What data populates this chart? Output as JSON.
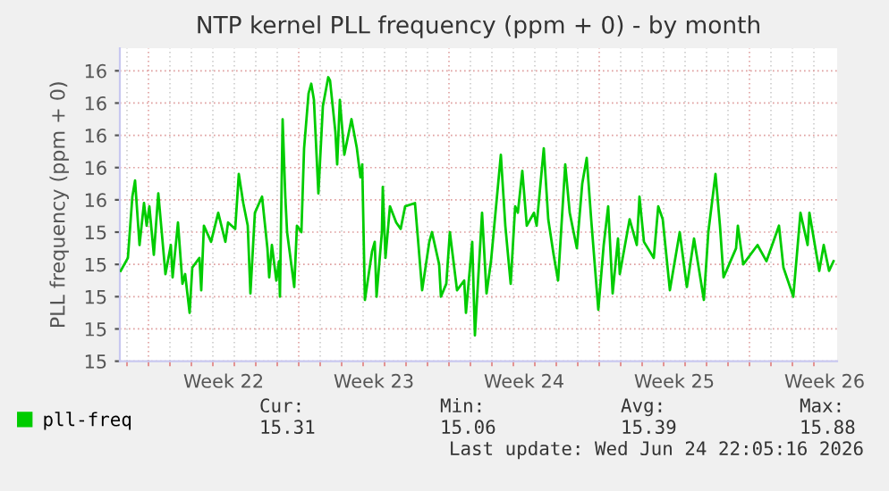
{
  "chart_data": {
    "type": "line",
    "title": "NTP kernel PLL frequency (ppm + 0) - by month",
    "ylabel": "PLL frequency (ppm + 0)",
    "x": [
      "2026-05-23T17:00",
      "2026-05-24T01:00",
      "2026-05-24T06:00",
      "2026-05-24T09:00",
      "2026-05-24T14:00",
      "2026-05-24T19:00",
      "2026-05-24T22:00",
      "2026-05-25T01:00",
      "2026-05-25T06:00",
      "2026-05-25T11:00",
      "2026-05-25T19:00",
      "2026-05-26T01:00",
      "2026-05-26T03:00",
      "2026-05-26T09:00",
      "2026-05-26T14:00",
      "2026-05-26T17:00",
      "2026-05-26T22:00",
      "2026-05-27T01:00",
      "2026-05-27T09:00",
      "2026-05-27T11:00",
      "2026-05-27T14:00",
      "2026-05-27T22:00",
      "2026-05-28T06:00",
      "2026-05-28T14:00",
      "2026-05-28T17:00",
      "2026-05-29T01:00",
      "2026-05-29T05:00",
      "2026-05-29T10:00",
      "2026-05-29T15:00",
      "2026-05-29T18:00",
      "2026-05-29T23:00",
      "2026-05-30T07:00",
      "2026-05-30T13:00",
      "2026-05-30T15:00",
      "2026-05-30T18:00",
      "2026-05-30T23:00",
      "2026-05-31T02:00",
      "2026-05-31T03:00",
      "2026-05-31T06:00",
      "2026-05-31T09:00",
      "2026-05-31T11:00",
      "2026-05-31T19:00",
      "2026-05-31T22:00",
      "2026-06-01T03:00",
      "2026-06-01T06:00",
      "2026-06-01T11:00",
      "2026-06-01T14:00",
      "2026-06-01T17:00",
      "2026-06-01T22:00",
      "2026-06-02T03:00",
      "2026-06-02T09:00",
      "2026-06-02T11:00",
      "2026-06-02T17:00",
      "2026-06-02T19:00",
      "2026-06-02T22:00",
      "2026-06-03T03:00",
      "2026-06-03T11:00",
      "2026-06-03T17:00",
      "2026-06-03T21:00",
      "2026-06-03T23:00",
      "2026-06-04T02:00",
      "2026-06-04T10:00",
      "2026-06-04T13:00",
      "2026-06-04T15:00",
      "2026-06-04T21:00",
      "2026-06-04T22:00",
      "2026-06-05T01:00",
      "2026-06-05T06:00",
      "2026-06-05T13:00",
      "2026-06-05T18:00",
      "2026-06-05T23:00",
      "2026-06-06T10:00",
      "2026-06-06T13:00",
      "2026-06-06T18:00",
      "2026-06-07T02:00",
      "2026-06-07T05:00",
      "2026-06-07T13:00",
      "2026-06-07T15:00",
      "2026-06-07T21:00",
      "2026-06-08T01:00",
      "2026-06-08T09:00",
      "2026-06-08T17:00",
      "2026-06-08T19:00",
      "2026-06-09T02:00",
      "2026-06-09T05:00",
      "2026-06-09T13:00",
      "2026-06-09T18:00",
      "2026-06-09T23:00",
      "2026-06-10T10:00",
      "2026-06-10T15:00",
      "2026-06-10T21:00",
      "2026-06-11T02:00",
      "2026-06-11T05:00",
      "2026-06-11T10:00",
      "2026-06-11T15:00",
      "2026-06-11T23:00",
      "2026-06-12T02:00",
      "2026-06-12T10:00",
      "2026-06-12T15:00",
      "2026-06-12T21:00",
      "2026-06-13T02:00",
      "2026-06-13T10:00",
      "2026-06-13T15:00",
      "2026-06-13T23:00",
      "2026-06-14T05:00",
      "2026-06-14T10:00",
      "2026-06-14T15:00",
      "2026-06-14T23:00",
      "2026-06-15T05:00",
      "2026-06-15T10:00",
      "2026-06-15T15:00",
      "2026-06-15T21:00",
      "2026-06-15T23:00",
      "2026-06-16T10:00",
      "2026-06-16T18:00",
      "2026-06-16T21:00",
      "2026-06-17T02:00",
      "2026-06-17T13:00",
      "2026-06-17T18:00",
      "2026-06-17T23:00",
      "2026-06-18T07:00",
      "2026-06-18T18:00",
      "2026-06-19T02:00",
      "2026-06-19T10:00",
      "2026-06-19T21:00",
      "2026-06-20T02:00",
      "2026-06-20T10:00",
      "2026-06-20T15:00",
      "2026-06-20T19:00",
      "2026-06-21T09:00",
      "2026-06-21T11:00",
      "2026-06-21T17:00",
      "2026-06-22T09:00",
      "2026-06-22T19:00",
      "2026-06-23T09:00",
      "2026-06-23T14:00",
      "2026-06-24T01:00",
      "2026-06-24T09:00",
      "2026-06-24T17:00",
      "2026-06-24T19:00",
      "2026-06-25T06:00",
      "2026-06-25T11:00",
      "2026-06-25T17:00",
      "2026-06-25T22:00"
    ],
    "series": [
      {
        "name": "pll-freq",
        "color": "#00cc00",
        "values": [
          15.28,
          15.32,
          15.51,
          15.56,
          15.36,
          15.49,
          15.42,
          15.48,
          15.33,
          15.52,
          15.27,
          15.36,
          15.26,
          15.43,
          15.24,
          15.27,
          15.15,
          15.29,
          15.32,
          15.22,
          15.42,
          15.37,
          15.46,
          15.37,
          15.43,
          15.41,
          15.58,
          15.49,
          15.42,
          15.21,
          15.46,
          15.51,
          15.35,
          15.26,
          15.36,
          15.25,
          15.31,
          15.2,
          15.75,
          15.51,
          15.4,
          15.23,
          15.42,
          15.4,
          15.66,
          15.83,
          15.86,
          15.81,
          15.52,
          15.79,
          15.88,
          15.87,
          15.71,
          15.61,
          15.81,
          15.64,
          15.75,
          15.66,
          15.57,
          15.61,
          15.19,
          15.34,
          15.37,
          15.2,
          15.4,
          15.54,
          15.32,
          15.48,
          15.43,
          15.41,
          15.48,
          15.49,
          15.39,
          15.22,
          15.37,
          15.4,
          15.3,
          15.2,
          15.24,
          15.4,
          15.22,
          15.25,
          15.15,
          15.37,
          15.08,
          15.46,
          15.21,
          15.31,
          15.64,
          15.42,
          15.24,
          15.48,
          15.46,
          15.59,
          15.42,
          15.46,
          15.42,
          15.66,
          15.44,
          15.33,
          15.25,
          15.61,
          15.46,
          15.35,
          15.55,
          15.63,
          15.44,
          15.16,
          15.36,
          15.48,
          15.21,
          15.38,
          15.27,
          15.44,
          15.36,
          15.51,
          15.37,
          15.32,
          15.48,
          15.44,
          15.22,
          15.4,
          15.23,
          15.38,
          15.19,
          15.4,
          15.58,
          15.42,
          15.26,
          15.35,
          15.42,
          15.3,
          15.36,
          15.31,
          15.42,
          15.29,
          15.2,
          15.46,
          15.36,
          15.46,
          15.28,
          15.36,
          15.28,
          15.31
        ]
      }
    ],
    "xlim": [
      "2026-05-23T16:00",
      "2026-06-26T02:00"
    ],
    "xticks": [
      {
        "value": "2026-05-28T12:00",
        "label": "Week 22"
      },
      {
        "value": "2026-06-04T12:00",
        "label": "Week 23"
      },
      {
        "value": "2026-06-11T12:00",
        "label": "Week 24"
      },
      {
        "value": "2026-06-18T12:00",
        "label": "Week 25"
      },
      {
        "value": "2026-06-25T12:00",
        "label": "Week 26"
      },
      {
        "value": "2026-05-24",
        "label": null
      },
      {
        "value": "2026-05-25",
        "label": null
      },
      {
        "value": "2026-05-26",
        "label": null
      },
      {
        "value": "2026-05-27",
        "label": null
      },
      {
        "value": "2026-05-28",
        "label": null
      },
      {
        "value": "2026-05-29",
        "label": null
      },
      {
        "value": "2026-05-30",
        "label": null
      },
      {
        "value": "2026-05-31",
        "label": null
      },
      {
        "value": "2026-06-01",
        "label": null
      },
      {
        "value": "2026-06-02",
        "label": null
      },
      {
        "value": "2026-06-03",
        "label": null
      },
      {
        "value": "2026-06-04",
        "label": null
      },
      {
        "value": "2026-06-05",
        "label": null
      },
      {
        "value": "2026-06-06",
        "label": null
      },
      {
        "value": "2026-06-07",
        "label": null
      },
      {
        "value": "2026-06-08",
        "label": null
      },
      {
        "value": "2026-06-09",
        "label": null
      },
      {
        "value": "2026-06-10",
        "label": null
      },
      {
        "value": "2026-06-11",
        "label": null
      },
      {
        "value": "2026-06-12",
        "label": null
      },
      {
        "value": "2026-06-13",
        "label": null
      },
      {
        "value": "2026-06-14",
        "label": null
      },
      {
        "value": "2026-06-15",
        "label": null
      },
      {
        "value": "2026-06-16",
        "label": null
      },
      {
        "value": "2026-06-17",
        "label": null
      },
      {
        "value": "2026-06-18",
        "label": null
      },
      {
        "value": "2026-06-19",
        "label": null
      },
      {
        "value": "2026-06-20",
        "label": null
      },
      {
        "value": "2026-06-21",
        "label": null
      },
      {
        "value": "2026-06-22",
        "label": null
      },
      {
        "value": "2026-06-23",
        "label": null
      },
      {
        "value": "2026-06-24",
        "label": null
      },
      {
        "value": "2026-06-25",
        "label": null
      }
    ],
    "ylim": [
      15.0,
      15.97
    ],
    "yticks": [
      {
        "value": 15.0,
        "label": "15"
      },
      {
        "value": 15.1,
        "label": "15"
      },
      {
        "value": 15.2,
        "label": "15"
      },
      {
        "value": 15.3,
        "label": "15"
      },
      {
        "value": 15.4,
        "label": "15"
      },
      {
        "value": 15.5,
        "label": "16"
      },
      {
        "value": 15.6,
        "label": "16"
      },
      {
        "value": 15.7,
        "label": "16"
      },
      {
        "value": 15.8,
        "label": "16"
      },
      {
        "value": 15.9,
        "label": "16"
      }
    ],
    "grid": true,
    "legend": "bottom left",
    "marker": "none",
    "line_style": "solid",
    "annotations": [
      "Cur:",
      "Min:",
      "Avg:",
      "Max:",
      "15.31",
      "15.06",
      "15.39",
      "15.88",
      "Last update: Wed Jun 24 22:05:16 2026"
    ]
  }
}
